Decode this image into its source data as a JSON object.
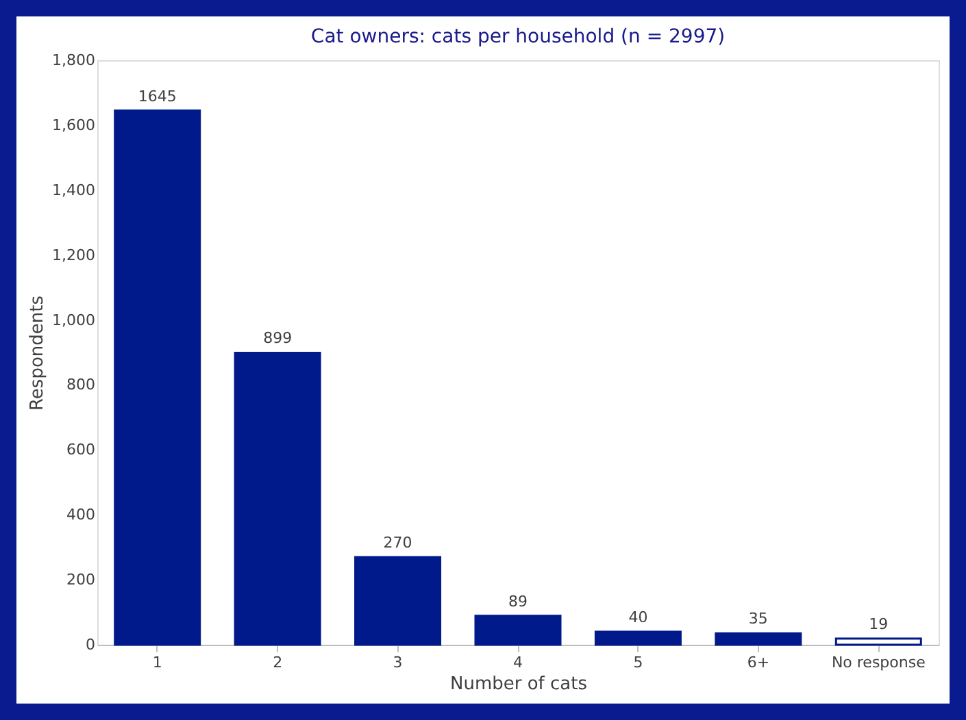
{
  "chart_data": {
    "type": "bar",
    "title": "Cat owners: cats per household (n = 2997)",
    "xlabel": "Number of cats",
    "ylabel": "Respondents",
    "categories": [
      "1",
      "2",
      "3",
      "4",
      "5",
      "6+",
      "No response"
    ],
    "values": [
      1645,
      899,
      270,
      89,
      40,
      35,
      19
    ],
    "color": "#001a8c",
    "colors": [
      "#001a8c",
      "#001a8c",
      "#001a8c",
      "#001a8c",
      "#001a8c",
      "#001a8c",
      "#ffffff"
    ],
    "ylim": [
      0,
      1800
    ],
    "yticks": [
      0,
      200,
      400,
      600,
      800,
      {
        "value": 1000,
        "label": "1,000"
      },
      {
        "value": 1200,
        "label": "1,200"
      },
      {
        "value": 1400,
        "label": "1,400"
      },
      {
        "value": 1600,
        "label": "1,600"
      },
      {
        "value": 1800,
        "label": "1,800"
      }
    ],
    "data_labels": true,
    "grid": false
  }
}
